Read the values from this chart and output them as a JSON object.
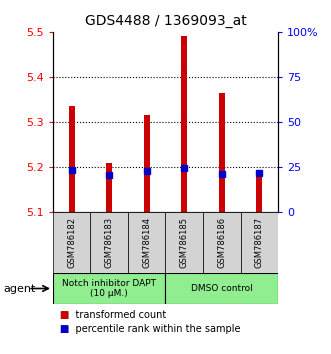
{
  "title": "GDS4488 / 1369093_at",
  "samples": [
    "GSM786182",
    "GSM786183",
    "GSM786184",
    "GSM786185",
    "GSM786186",
    "GSM786187"
  ],
  "red_values": [
    5.335,
    5.21,
    5.315,
    5.49,
    5.365,
    5.19
  ],
  "blue_values": [
    5.195,
    5.183,
    5.192,
    5.198,
    5.185,
    5.188
  ],
  "ylim_left": [
    5.1,
    5.5
  ],
  "ylim_right": [
    0,
    100
  ],
  "yticks_left": [
    5.1,
    5.2,
    5.3,
    5.4,
    5.5
  ],
  "yticks_right": [
    0,
    25,
    50,
    75,
    100
  ],
  "ytick_labels_right": [
    "0",
    "25",
    "50",
    "75",
    "100%"
  ],
  "bar_width": 0.15,
  "red_color": "#cc0000",
  "blue_color": "#0000cc",
  "group1_label": "Notch inhibitor DAPT\n(10 μM.)",
  "group2_label": "DMSO control",
  "group_bg_color": "#90ee90",
  "sample_bg_color": "#d3d3d3",
  "legend_red": "transformed count",
  "legend_blue": "percentile rank within the sample",
  "agent_label": "agent",
  "baseline": 5.1
}
